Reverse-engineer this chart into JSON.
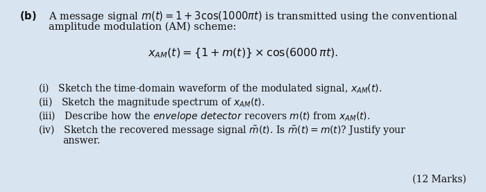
{
  "bg_color": "#d8e4f0",
  "text_color": "#111111",
  "figsize": [
    7.0,
    2.77
  ],
  "dpi": 100,
  "fontsize_body": 10.5,
  "fontsize_formula": 11.5,
  "fontsize_items": 10.0
}
